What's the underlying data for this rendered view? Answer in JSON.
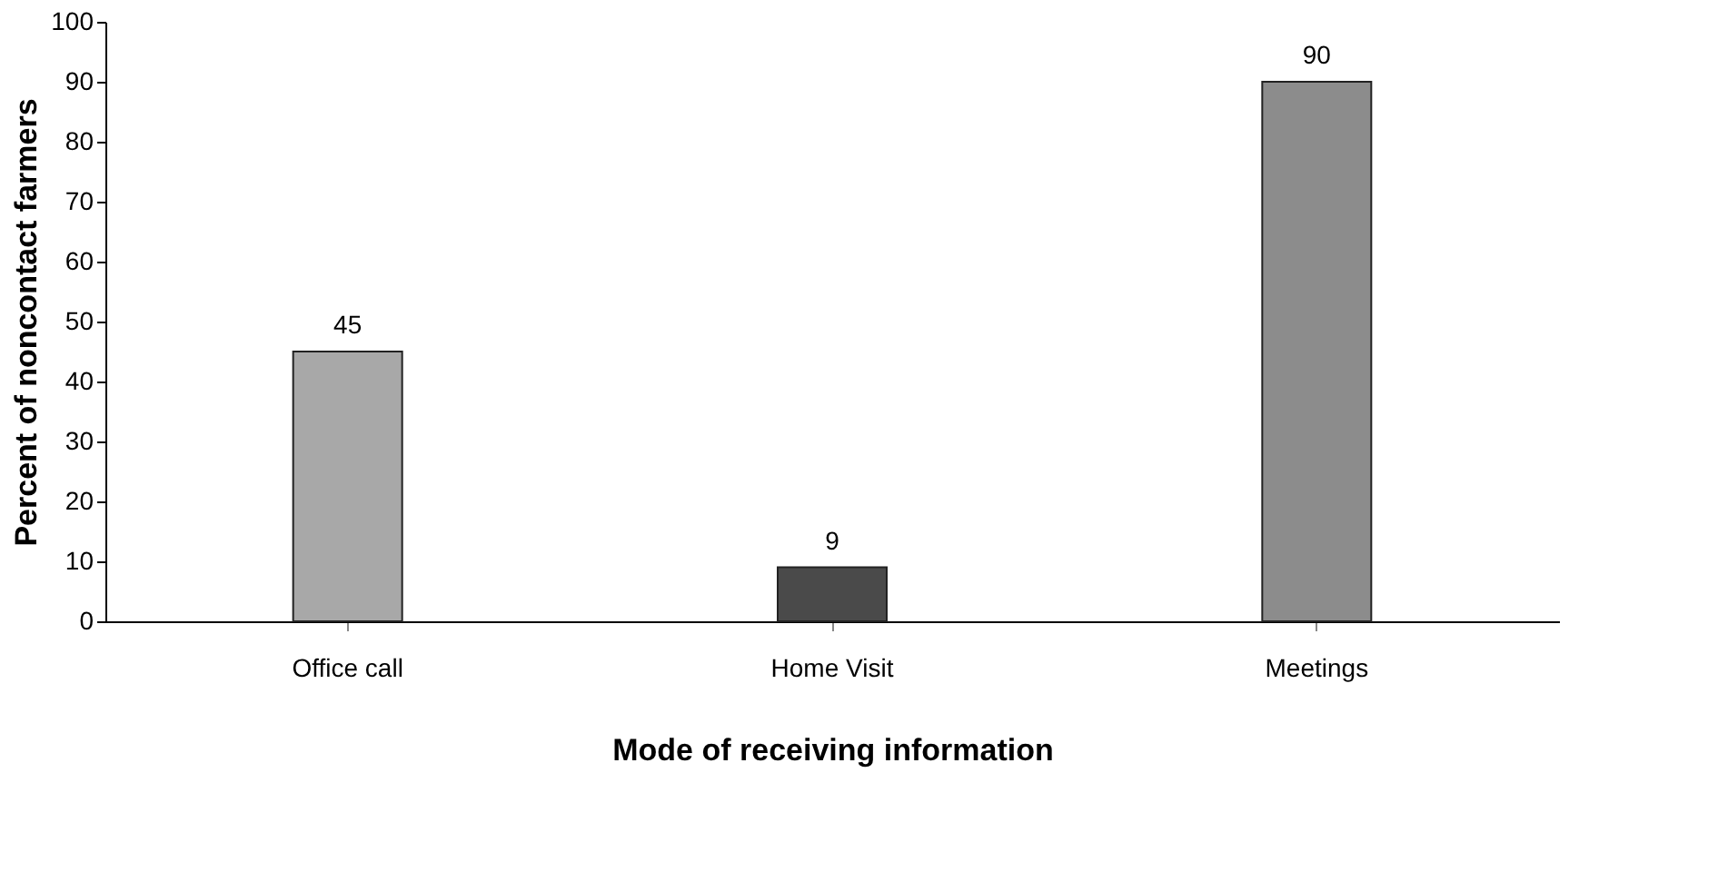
{
  "chart_data": {
    "type": "bar",
    "xlabel": "Mode of receiving information",
    "ylabel": "Percent of noncontact farmers",
    "categories": [
      "Office call",
      "Home Visit",
      "Meetings"
    ],
    "values": [
      45,
      9,
      90
    ],
    "colors": [
      "#a8a8a8",
      "#4a4a4a",
      "#8c8c8c"
    ],
    "ylim": [
      0,
      100
    ],
    "yticks": [
      0,
      10,
      20,
      30,
      40,
      50,
      60,
      70,
      80,
      90,
      100
    ],
    "data_labels": true,
    "grid": false
  }
}
